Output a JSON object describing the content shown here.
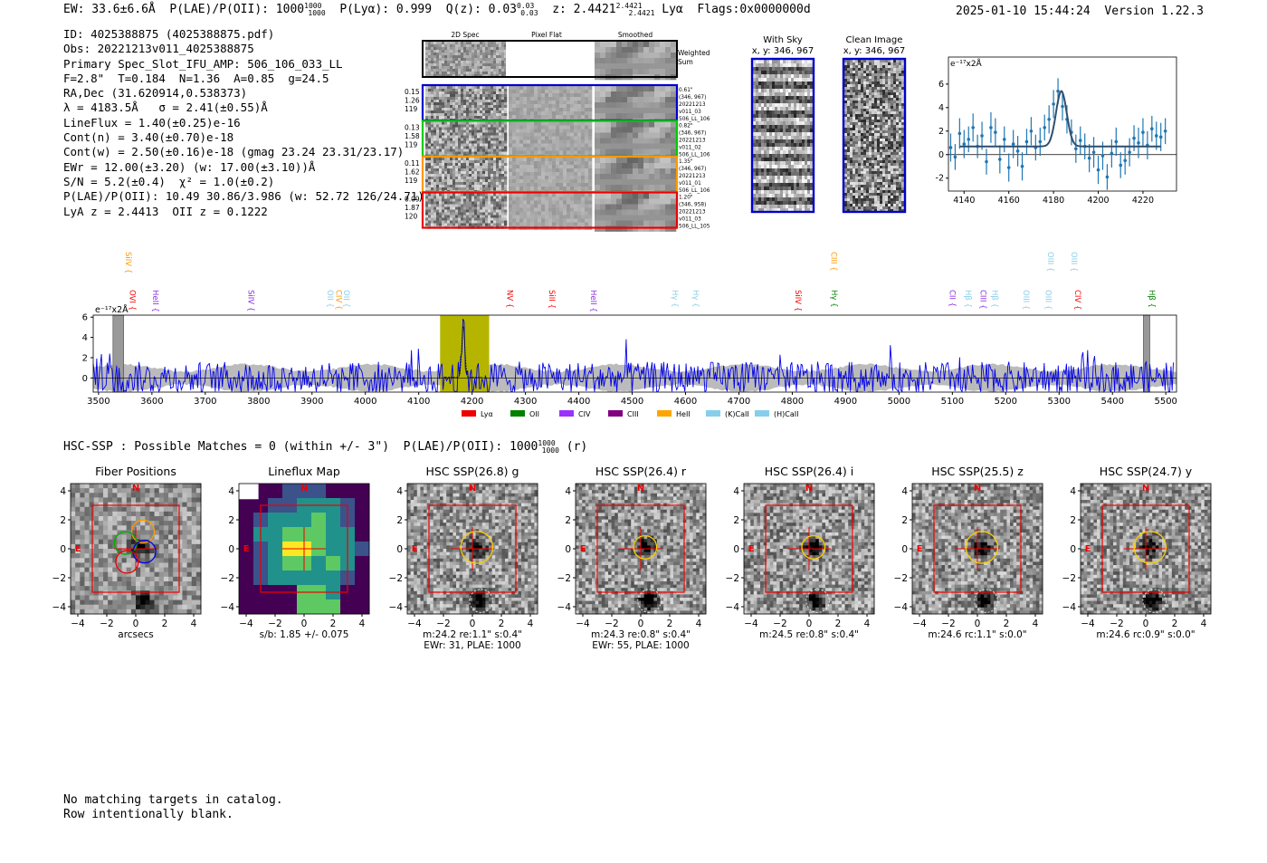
{
  "header": {
    "ew": "EW: 33.6±6.6Å",
    "plae_label": "P(LAE)/P(OII): 1000",
    "plae_hi": "1000",
    "plae_lo": "1000",
    "plya": "P(Lyα): 0.999",
    "qz_label": "Q(z): 0.03",
    "qz_hi": "0.03",
    "qz_lo": "0.03",
    "z_label": "z: 2.4421",
    "z_hi": "2.4421",
    "z_lo": "2.4421",
    "line": "Lyα",
    "flags": "Flags:0x0000000d",
    "datetime": "2025-01-10 15:44:24",
    "version": "Version 1.22.3"
  },
  "info_lines": [
    "ID: 4025388875 (4025388875.pdf)",
    "Obs: 20221213v011_4025388875",
    "Primary Spec_Slot_IFU_AMP: 506_106_033_LL",
    "F=2.8\"  T=0.184  N=1.36  A=0.85  g=24.5",
    "RA,Dec (31.620914,0.538373)",
    "λ = 4183.5Å   σ = 2.41(±0.55)Å",
    "LineFlux = 1.40(±0.25)e-16",
    "Cont(n) = 3.40(±0.70)e-18",
    "Cont(w) = 2.50(±0.16)e-18 (gmag 23.24 23.31/23.17)",
    "EWr = 12.00(±3.20) (w: 17.00(±3.10))Å",
    "S/N = 5.2(±0.4)  χ² = 1.0(±0.2)",
    "P(LAE)/P(OII): 10.49 30.86/3.986 (w: 52.72 126/24.71)",
    "LyA z = 2.4413  OII z = 0.1222"
  ],
  "cutouts": {
    "col_titles": [
      "2D Spec",
      "Pixel Flat",
      "Smoothed"
    ],
    "weighted_sum": [
      "Weighted",
      "Sum"
    ],
    "rows": [
      {
        "left": [
          "0.15",
          "1.26",
          "119"
        ],
        "right": [
          "0.61\"",
          "(346, 967)",
          "20221213",
          "v011_03",
          "506_LL_106"
        ],
        "color": "#0000cc"
      },
      {
        "left": [
          "0.13",
          "1.58",
          "119"
        ],
        "right": [
          "0.82\"",
          "(346, 967)",
          "20221213",
          "v011_02",
          "506_LL_106"
        ],
        "color": "#00cc00"
      },
      {
        "left": [
          "0.11",
          "1.62",
          "119"
        ],
        "right": [
          "1.35\"",
          "(346, 967)",
          "20221213",
          "v011_01",
          "506_LL_106"
        ],
        "color": "#ff9900"
      },
      {
        "left": [
          "0.09",
          "1.87",
          "120"
        ],
        "right": [
          "1.20\"",
          "(346, 958)",
          "20221213",
          "v011_03",
          "506_LL_105"
        ],
        "color": "#ee0000"
      }
    ]
  },
  "sky": {
    "with_sky_title": "With Sky",
    "clean_title": "Clean Image",
    "coords": "x, y: 346, 967"
  },
  "zoom_chart": {
    "type": "line",
    "ylabel": "e⁻¹⁷x2Å",
    "xlim": [
      4133,
      4235
    ],
    "ylim": [
      -3.1,
      8.3
    ],
    "xticks": [
      4140,
      4160,
      4180,
      4200,
      4220
    ],
    "yticks": [
      -2,
      0,
      2,
      4,
      6
    ],
    "points": [
      [
        4134,
        0.6,
        1.2
      ],
      [
        4136,
        -0.2,
        1.1
      ],
      [
        4138,
        1.8,
        1.3
      ],
      [
        4140,
        0.9,
        1.2
      ],
      [
        4142,
        1.3,
        1.1
      ],
      [
        4144,
        2.3,
        1.2
      ],
      [
        4146,
        0.7,
        1.0
      ],
      [
        4148,
        1.6,
        1.2
      ],
      [
        4150,
        -0.6,
        1.1
      ],
      [
        4152,
        2.3,
        1.3
      ],
      [
        4154,
        1.9,
        1.2
      ],
      [
        4156,
        -0.4,
        1.2
      ],
      [
        4158,
        1.3,
        1.1
      ],
      [
        4160,
        -1.1,
        1.2
      ],
      [
        4162,
        0.9,
        1.2
      ],
      [
        4164,
        0.3,
        1.3
      ],
      [
        4166,
        -1.0,
        1.2
      ],
      [
        4168,
        1.1,
        1.1
      ],
      [
        4170,
        2.0,
        1.2
      ],
      [
        4172,
        0.6,
        1.1
      ],
      [
        4174,
        1.1,
        1.2
      ],
      [
        4176,
        2.3,
        1.1
      ],
      [
        4178,
        3.0,
        1.2
      ],
      [
        4180,
        4.3,
        1.2
      ],
      [
        4182,
        5.4,
        1.1
      ],
      [
        4184,
        4.1,
        1.2
      ],
      [
        4186,
        3.0,
        1.2
      ],
      [
        4188,
        1.9,
        1.1
      ],
      [
        4190,
        0.5,
        1.2
      ],
      [
        4192,
        1.2,
        1.2
      ],
      [
        4194,
        0.7,
        1.1
      ],
      [
        4196,
        -0.3,
        1.2
      ],
      [
        4198,
        0.2,
        1.3
      ],
      [
        4200,
        -1.3,
        1.2
      ],
      [
        4202,
        -0.1,
        1.2
      ],
      [
        4204,
        -1.9,
        1.1
      ],
      [
        4206,
        0.1,
        1.2
      ],
      [
        4208,
        1.1,
        1.2
      ],
      [
        4210,
        -0.9,
        1.1
      ],
      [
        4212,
        -0.5,
        1.2
      ],
      [
        4214,
        0.2,
        1.2
      ],
      [
        4216,
        1.4,
        1.1
      ],
      [
        4218,
        1.0,
        1.3
      ],
      [
        4220,
        1.9,
        1.2
      ],
      [
        4222,
        0.8,
        1.2
      ],
      [
        4224,
        2.2,
        1.1
      ],
      [
        4226,
        1.6,
        1.2
      ],
      [
        4228,
        1.5,
        1.2
      ],
      [
        4230,
        2.0,
        1.1
      ]
    ],
    "fit": {
      "continuum": 0.7,
      "amplitude": 4.7,
      "center": 4183.5,
      "sigma": 2.41
    }
  },
  "spectrum": {
    "type": "line",
    "ylabel": "e⁻¹⁷x2Å",
    "xlim": [
      3490,
      5520
    ],
    "ylim": [
      -1.4,
      6.2
    ],
    "xticks": [
      3500,
      3600,
      3700,
      3800,
      3900,
      4000,
      4100,
      4200,
      4300,
      4400,
      4500,
      4600,
      4700,
      4800,
      4900,
      5000,
      5100,
      5200,
      5300,
      5400,
      5500
    ],
    "yticks": [
      0,
      2,
      4,
      6
    ],
    "highlight_range": [
      4140,
      4232
    ],
    "masked_ranges": [
      [
        3527,
        3547
      ],
      [
        5458,
        5470
      ]
    ],
    "line_markers": [
      {
        "label": "SiIV",
        "wave": 3546,
        "row": 0,
        "color": "#ff9900"
      },
      {
        "label": "OVI",
        "wave": 3554,
        "row": 1,
        "color": "#ff0000"
      },
      {
        "label": "HeII",
        "wave": 3597,
        "row": 1,
        "color": "#8a2be2"
      },
      {
        "label": "SiIV",
        "wave": 3776,
        "row": 1,
        "color": "#8a2be2"
      },
      {
        "label": "OII",
        "wave": 3924,
        "row": 1,
        "color": "#87ceeb"
      },
      {
        "label": "CIV",
        "wave": 3940,
        "row": 1,
        "color": "#ff9900"
      },
      {
        "label": "OII",
        "wave": 3955,
        "row": 1,
        "color": "#87ceeb"
      },
      {
        "label": "NV",
        "wave": 4261,
        "row": 1,
        "color": "#ff0000"
      },
      {
        "label": "SiII",
        "wave": 4340,
        "row": 1,
        "color": "#ff0000"
      },
      {
        "label": "HeII",
        "wave": 4418,
        "row": 1,
        "color": "#8a2be2"
      },
      {
        "label": "Hγ",
        "wave": 4570,
        "row": 1,
        "color": "#87ceeb"
      },
      {
        "label": "Hγ",
        "wave": 4609,
        "row": 1,
        "color": "#87ceeb"
      },
      {
        "label": "SiIV",
        "wave": 4801,
        "row": 1,
        "color": "#ff0000"
      },
      {
        "label": "CIII",
        "wave": 4868,
        "row": 0,
        "color": "#ff9900"
      },
      {
        "label": "Hγ",
        "wave": 4869,
        "row": 1,
        "color": "#008000"
      },
      {
        "label": "CII",
        "wave": 5090,
        "row": 1,
        "color": "#8a2be2"
      },
      {
        "label": "Hβ",
        "wave": 5120,
        "row": 1,
        "color": "#87ceeb"
      },
      {
        "label": "CIII",
        "wave": 5148,
        "row": 1,
        "color": "#8a2be2"
      },
      {
        "label": "Hβ",
        "wave": 5170,
        "row": 1,
        "color": "#87ceeb"
      },
      {
        "label": "OIII",
        "wave": 5228,
        "row": 1,
        "color": "#87ceeb"
      },
      {
        "label": "OIII",
        "wave": 5270,
        "row": 1,
        "color": "#87ceeb"
      },
      {
        "label": "OIII",
        "wave": 5274,
        "row": 0,
        "color": "#87ceeb"
      },
      {
        "label": "OIII",
        "wave": 5318,
        "row": 0,
        "color": "#87ceeb"
      },
      {
        "label": "CIV",
        "wave": 5325,
        "row": 1,
        "color": "#ff0000"
      },
      {
        "label": "Hβ",
        "wave": 5464,
        "row": 1,
        "color": "#008000"
      }
    ],
    "legend": [
      {
        "label": "Lyα",
        "color": "#ee0000"
      },
      {
        "label": "OII",
        "color": "#008000"
      },
      {
        "label": "CIV",
        "color": "#9b30ff"
      },
      {
        "label": "CIII",
        "color": "#800080"
      },
      {
        "label": "HeII",
        "color": "#ffa500"
      },
      {
        "label": "(K)CaII",
        "color": "#87ceeb"
      },
      {
        "label": "(H)CaII",
        "color": "#87ceeb"
      }
    ]
  },
  "hsc_summary": {
    "text": "HSC-SSP : Possible Matches = 0 (within +/- 3\")  P(LAE)/P(OII): 1000",
    "hi": "1000",
    "lo": "1000",
    "band": "(r)"
  },
  "thumbnails": [
    {
      "title": "Fiber Positions",
      "xlabel": "arcsecs",
      "caption": "",
      "kind": "fiber"
    },
    {
      "title": "Lineflux Map",
      "xlabel": "s/b: 1.85 +/- 0.075",
      "caption": "",
      "kind": "lineflux"
    },
    {
      "title": "HSC SSP(26.8) g",
      "xlabel": "m:24.2  re:1.1\"  s:0.4\"",
      "caption": "EWr: 31, PLAE: 1000",
      "kind": "hsc"
    },
    {
      "title": "HSC SSP(26.4) r",
      "xlabel": "m:24.3  re:0.8\"  s:0.4\"",
      "caption": "EWr: 55, PLAE: 1000",
      "kind": "hsc"
    },
    {
      "title": "HSC SSP(26.4) i",
      "xlabel": "m:24.5  re:0.8\"  s:0.4\"",
      "caption": "",
      "kind": "hsc"
    },
    {
      "title": "HSC SSP(25.5) z",
      "xlabel": "m:24.6  rc:1.1\"  s:0.0\"",
      "caption": "",
      "kind": "hsc"
    },
    {
      "title": "HSC SSP(24.7) y",
      "xlabel": "m:24.6  rc:0.9\"  s:0.0\"",
      "caption": "",
      "kind": "hsc"
    }
  ],
  "thumb_axes": {
    "ticks": [
      -4,
      -2,
      0,
      2,
      4
    ],
    "north": "N",
    "east": "E"
  },
  "footer": [
    "No matching targets in catalog.",
    "Row intentionally blank."
  ]
}
